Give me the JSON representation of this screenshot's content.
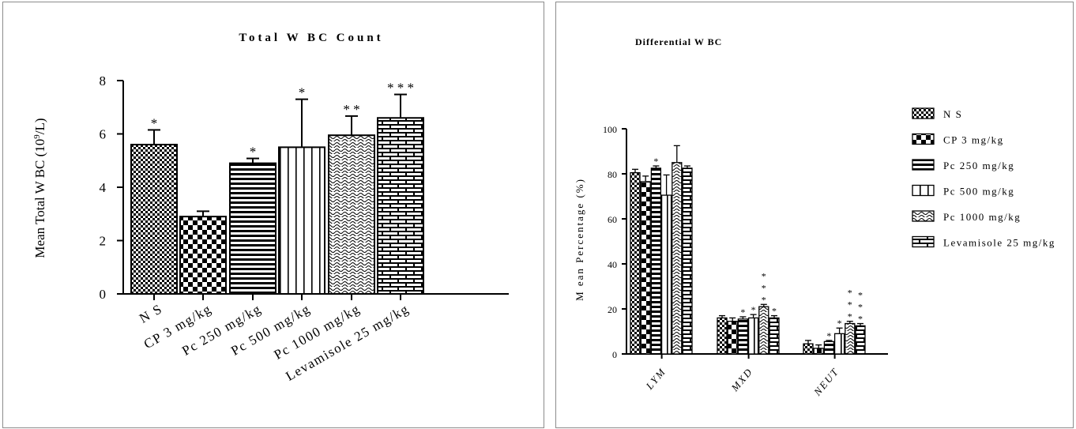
{
  "chart_data": [
    {
      "type": "bar",
      "title": "Total W BC Count",
      "ylabel": "Mean Total W BC (10",
      "ylabel_sup": "9",
      "ylabel_end": "/L)",
      "ylim": [
        0,
        8
      ],
      "yticks": [
        "0",
        "2",
        "4",
        "6",
        "8"
      ],
      "categories": [
        "N S",
        "CP 3 mg/kg",
        "Pc 250 mg/kg",
        "Pc 500 mg/kg",
        "Pc 1000 mg/kg",
        "Levamisole 25 mg/kg"
      ],
      "values": [
        5.6,
        2.9,
        4.9,
        5.5,
        5.95,
        6.6
      ],
      "errors": [
        0.55,
        0.2,
        0.18,
        1.8,
        0.72,
        0.88
      ],
      "significance": [
        "*",
        "",
        "*",
        "*",
        "* *",
        "* * *"
      ],
      "patterns": [
        "checker-small",
        "checker-large",
        "horizontal-lines",
        "vertical-lines",
        "wavy",
        "brick"
      ]
    },
    {
      "type": "bar",
      "title": "Differential W BC",
      "ylabel": "M ean  Percentage (%)",
      "ylim": [
        0,
        100
      ],
      "yticks": [
        "0",
        "20",
        "40",
        "60",
        "80",
        "100"
      ],
      "categories": [
        "LYM",
        "MXD",
        "NEUT"
      ],
      "series": [
        {
          "name": "N S",
          "values": [
            80.5,
            16,
            4.5
          ],
          "errors": [
            1.5,
            1,
            1.5
          ],
          "sig": [
            "",
            "",
            ""
          ],
          "pattern": "checker-small"
        },
        {
          "name": "CP 3 mg/kg",
          "values": [
            76.5,
            14.5,
            2.5
          ],
          "errors": [
            2.5,
            1.5,
            1.5
          ],
          "sig": [
            "",
            "",
            ""
          ],
          "pattern": "checker-large"
        },
        {
          "name": "Pc 250 mg/kg",
          "values": [
            82.5,
            15.5,
            5.5
          ],
          "errors": [
            1,
            1,
            0.5
          ],
          "sig": [
            "*",
            "*",
            "*"
          ],
          "pattern": "horizontal-lines"
        },
        {
          "name": "Pc 500 mg/kg",
          "values": [
            70.5,
            16,
            9
          ],
          "errors": [
            9,
            1.5,
            2.5
          ],
          "sig": [
            "",
            "*",
            "*"
          ],
          "pattern": "vertical-lines"
        },
        {
          "name": "Pc 1000 mg/kg",
          "values": [
            85,
            21,
            13.5
          ],
          "errors": [
            7.5,
            1,
            1
          ],
          "sig": [
            "",
            "* * *",
            "* * *"
          ],
          "pattern": "wavy"
        },
        {
          "name": "Levamisole 25 mg/kg",
          "values": [
            82.5,
            16,
            12.5
          ],
          "errors": [
            1,
            1,
            1
          ],
          "sig": [
            "",
            "*",
            "* * *"
          ],
          "pattern": "brick"
        }
      ]
    }
  ]
}
